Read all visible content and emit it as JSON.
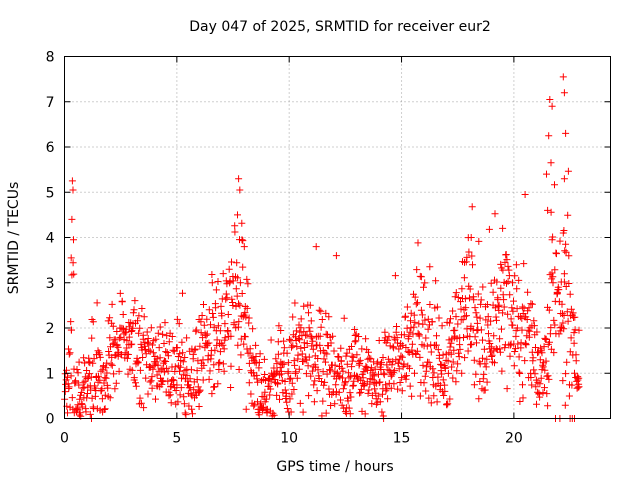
{
  "chart_data": {
    "type": "scatter",
    "title": "Day 047 of 2025, SRMTID for receiver eur2",
    "xlabel": "GPS time / hours",
    "ylabel": "SRMTID / TECUs",
    "xlim": [
      0,
      24.3
    ],
    "ylim": [
      0,
      8
    ],
    "x_ticks": [
      0,
      5,
      10,
      15,
      20
    ],
    "x_tick_labels": [
      "0",
      "5",
      "10",
      "15",
      "20"
    ],
    "y_ticks": [
      0,
      1,
      2,
      3,
      4,
      5,
      6,
      7,
      8
    ],
    "y_tick_labels": [
      "0",
      "1",
      "2",
      "3",
      "4",
      "5",
      "6",
      "7",
      "8"
    ],
    "grid": true,
    "marker": "+",
    "marker_color": "#ff0000",
    "envelope": {
      "x": [
        0.0,
        0.2,
        0.35,
        0.5,
        0.7,
        0.9,
        1.2,
        1.5,
        1.8,
        2.0,
        2.3,
        2.6,
        3.0,
        3.3,
        3.6,
        4.0,
        4.4,
        4.8,
        5.2,
        5.6,
        6.0,
        6.3,
        6.6,
        6.9,
        7.2,
        7.5,
        7.7,
        7.9,
        8.2,
        8.6,
        9.0,
        9.3,
        9.7,
        10.0,
        10.4,
        10.8,
        11.2,
        11.6,
        12.0,
        12.4,
        12.8,
        13.2,
        13.6,
        14.0,
        14.3,
        14.6,
        15.0,
        15.4,
        15.7,
        16.0,
        16.4,
        16.8,
        17.2,
        17.6,
        18.0,
        18.4,
        18.8,
        19.2,
        19.6,
        20.0,
        20.3,
        20.6,
        20.9,
        21.2,
        21.5,
        21.8,
        22.0,
        22.3,
        22.6,
        22.9
      ],
      "center": [
        0.8,
        1.0,
        2.5,
        0.4,
        0.3,
        0.6,
        0.8,
        1.0,
        0.7,
        1.3,
        1.5,
        1.6,
        1.4,
        1.5,
        1.6,
        1.2,
        1.1,
        1.0,
        1.2,
        0.9,
        1.3,
        1.7,
        2.0,
        1.8,
        2.0,
        2.6,
        2.8,
        2.7,
        1.5,
        0.8,
        0.5,
        0.8,
        1.0,
        1.2,
        1.4,
        1.3,
        1.2,
        1.4,
        1.0,
        0.9,
        1.1,
        1.0,
        0.8,
        0.7,
        0.9,
        1.2,
        1.4,
        1.8,
        2.0,
        1.8,
        1.3,
        1.2,
        1.6,
        1.8,
        2.5,
        1.7,
        1.4,
        2.2,
        2.8,
        1.9,
        1.8,
        2.0,
        1.5,
        1.0,
        1.5,
        3.0,
        2.0,
        2.5,
        2.0,
        0.7
      ],
      "spread": [
        0.6,
        0.6,
        1.5,
        0.4,
        0.3,
        0.5,
        0.6,
        0.6,
        0.5,
        0.6,
        0.6,
        0.6,
        0.6,
        0.6,
        0.6,
        0.6,
        0.6,
        0.6,
        0.6,
        0.6,
        0.7,
        0.7,
        0.8,
        0.8,
        0.8,
        0.9,
        1.0,
        1.0,
        0.7,
        0.5,
        0.4,
        0.5,
        0.6,
        0.7,
        0.7,
        0.7,
        0.7,
        0.7,
        0.6,
        0.6,
        0.6,
        0.6,
        0.6,
        0.5,
        0.6,
        0.6,
        0.7,
        0.8,
        0.8,
        0.8,
        0.7,
        0.7,
        0.7,
        0.8,
        1.0,
        0.8,
        0.7,
        0.9,
        1.0,
        0.8,
        0.8,
        0.9,
        0.7,
        0.5,
        0.8,
        1.5,
        1.0,
        1.2,
        0.8,
        0.2
      ]
    },
    "peaks": [
      {
        "x": 0.35,
        "y": 5.25
      },
      {
        "x": 0.38,
        "y": 5.05
      },
      {
        "x": 0.33,
        "y": 4.4
      },
      {
        "x": 0.4,
        "y": 3.95
      },
      {
        "x": 0.3,
        "y": 3.55
      },
      {
        "x": 7.75,
        "y": 5.3
      },
      {
        "x": 7.8,
        "y": 5.05
      },
      {
        "x": 7.7,
        "y": 4.5
      },
      {
        "x": 7.9,
        "y": 3.95
      },
      {
        "x": 8.0,
        "y": 3.8
      },
      {
        "x": 11.2,
        "y": 3.8
      },
      {
        "x": 12.1,
        "y": 3.6
      },
      {
        "x": 17.8,
        "y": 3.45
      },
      {
        "x": 18.1,
        "y": 4.0
      },
      {
        "x": 19.5,
        "y": 4.2
      },
      {
        "x": 20.5,
        "y": 4.95
      },
      {
        "x": 21.6,
        "y": 7.05
      },
      {
        "x": 21.7,
        "y": 6.9
      },
      {
        "x": 21.55,
        "y": 6.25
      },
      {
        "x": 21.65,
        "y": 5.65
      },
      {
        "x": 21.45,
        "y": 5.4
      },
      {
        "x": 21.5,
        "y": 4.6
      },
      {
        "x": 21.7,
        "y": 3.95
      },
      {
        "x": 22.2,
        "y": 7.55
      },
      {
        "x": 22.25,
        "y": 7.2
      },
      {
        "x": 22.3,
        "y": 6.3
      },
      {
        "x": 22.25,
        "y": 5.3
      },
      {
        "x": 22.2,
        "y": 4.1
      },
      {
        "x": 22.3,
        "y": 3.85
      },
      {
        "x": 22.25,
        "y": 3.2
      },
      {
        "x": 22.9,
        "y": 1.95
      },
      {
        "x": 22.85,
        "y": 0.85
      },
      {
        "x": 22.9,
        "y": 0.7
      }
    ],
    "zeros": [
      {
        "x": 1.2,
        "y": 0
      },
      {
        "x": 14.2,
        "y": 0
      },
      {
        "x": 21.85,
        "y": 0
      },
      {
        "x": 22.05,
        "y": 0
      },
      {
        "x": 22.5,
        "y": 0
      },
      {
        "x": 22.6,
        "y": 0
      },
      {
        "x": 22.7,
        "y": 0
      }
    ],
    "sample_count": 1400
  }
}
